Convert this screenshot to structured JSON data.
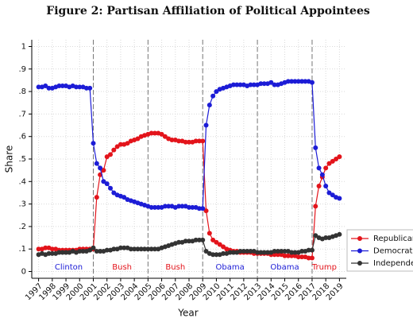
{
  "chart_data": {
    "type": "line",
    "title": "Figure 2: Partisan Affiliation of Political Appointees",
    "xlabel": "Year",
    "ylabel": "Share",
    "x": [
      1997,
      1997.25,
      1997.5,
      1997.75,
      1998,
      1998.25,
      1998.5,
      1998.75,
      1999,
      1999.25,
      1999.5,
      1999.75,
      2000,
      2000.25,
      2000.5,
      2000.75,
      2001,
      2001.25,
      2001.5,
      2001.75,
      2002,
      2002.25,
      2002.5,
      2002.75,
      2003,
      2003.25,
      2003.5,
      2003.75,
      2004,
      2004.25,
      2004.5,
      2004.75,
      2005,
      2005.25,
      2005.5,
      2005.75,
      2006,
      2006.25,
      2006.5,
      2006.75,
      2007,
      2007.25,
      2007.5,
      2007.75,
      2008,
      2008.25,
      2008.5,
      2008.75,
      2009,
      2009.25,
      2009.5,
      2009.75,
      2010,
      2010.25,
      2010.5,
      2010.75,
      2011,
      2011.25,
      2011.5,
      2011.75,
      2012,
      2012.25,
      2012.5,
      2012.75,
      2013,
      2013.25,
      2013.5,
      2013.75,
      2014,
      2014.25,
      2014.5,
      2014.75,
      2015,
      2015.25,
      2015.5,
      2015.75,
      2016,
      2016.25,
      2016.5,
      2016.75,
      2017,
      2017.25,
      2017.5,
      2017.75,
      2018,
      2018.25,
      2018.5,
      2018.75,
      2019
    ],
    "series": [
      {
        "name": "Republican",
        "color": "#e3141b",
        "values": [
          0.1,
          0.1,
          0.105,
          0.105,
          0.1,
          0.1,
          0.095,
          0.095,
          0.095,
          0.095,
          0.095,
          0.095,
          0.1,
          0.1,
          0.1,
          0.1,
          0.1,
          0.33,
          0.43,
          0.45,
          0.51,
          0.52,
          0.54,
          0.555,
          0.565,
          0.565,
          0.57,
          0.58,
          0.585,
          0.59,
          0.6,
          0.605,
          0.61,
          0.615,
          0.615,
          0.615,
          0.61,
          0.6,
          0.59,
          0.585,
          0.585,
          0.58,
          0.58,
          0.575,
          0.575,
          0.575,
          0.58,
          0.58,
          0.58,
          0.27,
          0.17,
          0.14,
          0.13,
          0.12,
          0.11,
          0.1,
          0.095,
          0.09,
          0.09,
          0.085,
          0.085,
          0.085,
          0.085,
          0.08,
          0.08,
          0.08,
          0.08,
          0.08,
          0.075,
          0.075,
          0.075,
          0.075,
          0.07,
          0.07,
          0.07,
          0.07,
          0.065,
          0.065,
          0.065,
          0.06,
          0.06,
          0.29,
          0.38,
          0.42,
          0.46,
          0.48,
          0.49,
          0.5,
          0.51
        ]
      },
      {
        "name": "Democrat",
        "color": "#1c1cd6",
        "values": [
          0.82,
          0.82,
          0.825,
          0.815,
          0.815,
          0.82,
          0.825,
          0.825,
          0.825,
          0.82,
          0.825,
          0.82,
          0.82,
          0.82,
          0.815,
          0.815,
          0.57,
          0.48,
          0.46,
          0.4,
          0.39,
          0.37,
          0.35,
          0.34,
          0.335,
          0.33,
          0.32,
          0.315,
          0.31,
          0.305,
          0.3,
          0.295,
          0.29,
          0.285,
          0.285,
          0.285,
          0.285,
          0.29,
          0.29,
          0.29,
          0.285,
          0.29,
          0.29,
          0.29,
          0.285,
          0.285,
          0.285,
          0.28,
          0.28,
          0.65,
          0.74,
          0.78,
          0.8,
          0.81,
          0.815,
          0.82,
          0.825,
          0.83,
          0.83,
          0.83,
          0.83,
          0.825,
          0.83,
          0.83,
          0.83,
          0.835,
          0.835,
          0.835,
          0.84,
          0.83,
          0.83,
          0.835,
          0.84,
          0.845,
          0.845,
          0.845,
          0.845,
          0.845,
          0.845,
          0.845,
          0.84,
          0.55,
          0.46,
          0.43,
          0.38,
          0.35,
          0.34,
          0.33,
          0.325
        ]
      },
      {
        "name": "Independent",
        "color": "#333333",
        "values": [
          0.075,
          0.08,
          0.075,
          0.08,
          0.08,
          0.08,
          0.085,
          0.085,
          0.085,
          0.085,
          0.09,
          0.085,
          0.09,
          0.09,
          0.09,
          0.095,
          0.105,
          0.09,
          0.09,
          0.09,
          0.095,
          0.095,
          0.1,
          0.1,
          0.105,
          0.105,
          0.105,
          0.1,
          0.1,
          0.1,
          0.1,
          0.1,
          0.1,
          0.1,
          0.1,
          0.1,
          0.105,
          0.11,
          0.115,
          0.12,
          0.125,
          0.13,
          0.13,
          0.135,
          0.135,
          0.135,
          0.14,
          0.14,
          0.14,
          0.09,
          0.08,
          0.075,
          0.075,
          0.075,
          0.08,
          0.08,
          0.085,
          0.085,
          0.085,
          0.09,
          0.09,
          0.09,
          0.09,
          0.09,
          0.085,
          0.085,
          0.085,
          0.085,
          0.085,
          0.09,
          0.09,
          0.09,
          0.09,
          0.09,
          0.085,
          0.085,
          0.085,
          0.09,
          0.09,
          0.095,
          0.095,
          0.16,
          0.15,
          0.145,
          0.15,
          0.15,
          0.155,
          0.16,
          0.165
        ]
      }
    ],
    "xlim": [
      1996.5,
      2019.5
    ],
    "ylim": [
      -0.03,
      1.03
    ],
    "xticks": [
      1997,
      1998,
      1999,
      2000,
      2001,
      2002,
      2003,
      2004,
      2005,
      2006,
      2007,
      2008,
      2009,
      2010,
      2011,
      2012,
      2013,
      2014,
      2015,
      2016,
      2017,
      2018,
      2019
    ],
    "yticks": [
      0,
      {
        "value": 0.1,
        "label": ".1"
      },
      {
        "value": 0.2,
        "label": ".2"
      },
      {
        "value": 0.3,
        "label": ".3"
      },
      {
        "value": 0.4,
        "label": ".4"
      },
      {
        "value": 0.5,
        "label": ".5"
      },
      {
        "value": 0.6,
        "label": ".6"
      },
      {
        "value": 0.7,
        "label": ".7"
      },
      {
        "value": 0.8,
        "label": ".8"
      },
      {
        "value": 0.9,
        "label": ".9"
      },
      1
    ],
    "grid": true,
    "legend": "right",
    "vlines": [
      2001,
      2005,
      2009,
      2013,
      2017
    ],
    "annotations": [
      {
        "text": "Clinton",
        "x": 1999.2,
        "y": 0.02,
        "color": "#1c1cd6"
      },
      {
        "text": "Bush",
        "x": 2003.1,
        "y": 0.02,
        "color": "#e3141b"
      },
      {
        "text": "Bush",
        "x": 2007,
        "y": 0.02,
        "color": "#e3141b"
      },
      {
        "text": "Obama",
        "x": 2011,
        "y": 0.02,
        "color": "#1c1cd6"
      },
      {
        "text": "Obama",
        "x": 2015,
        "y": 0.02,
        "color": "#1c1cd6"
      },
      {
        "text": "Trump",
        "x": 2017.9,
        "y": 0.02,
        "color": "#e3141b"
      }
    ]
  }
}
